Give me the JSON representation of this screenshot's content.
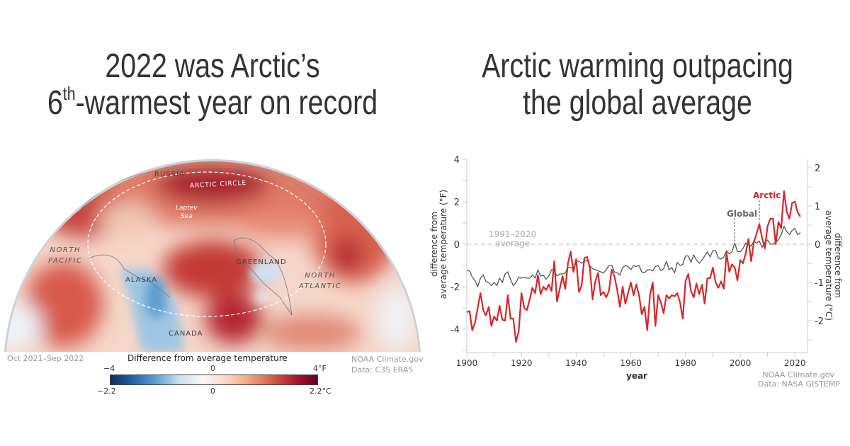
{
  "left_panel": {
    "title_line1": "2022 was Arctic’s",
    "title_line2_pre": "6",
    "title_line2_sup": "th",
    "title_line2_post": "-warmest year on record",
    "map_labels": {
      "russia": "RUSSIA",
      "arctic_circle": "ARCTIC CIRCLE",
      "laptev1": "Laptev",
      "laptev2": "Sea",
      "north_pacific1": "NORTH",
      "north_pacific2": "PACIFIC",
      "alaska": "ALASKA",
      "greenland": "GREENLAND",
      "north_atlantic1": "NORTH",
      "north_atlantic2": "ATLANTIC",
      "canada": "CANADA"
    },
    "period": "Oct 2021–Sep 2022",
    "legend_title": "Difference from average temperature",
    "legend_f": {
      "min": "−4",
      "mid": "0",
      "max": "4°F"
    },
    "legend_c": {
      "min": "−2.2",
      "mid": "0",
      "max": "2.2°C"
    },
    "legend_colors": [
      "#0b2d63",
      "#2166ac",
      "#5fa3d0",
      "#c9e1ef",
      "#f7f7f7",
      "#fcd9c4",
      "#f4a582",
      "#d6604d",
      "#b2182b",
      "#67001f"
    ],
    "credit1": "NOAA Climate.gov",
    "credit2": "Data: C3S ERA5"
  },
  "right_panel": {
    "title_line1": "Arctic warming outpacing",
    "title_line2": "the global average",
    "credit1": "NOAA Climate.gov",
    "credit2": "Data: NASA GISTEMP"
  },
  "chart_data": {
    "type": "line",
    "xlabel": "year",
    "ylabel_left": [
      "difference from",
      "average temperature (°F)"
    ],
    "ylabel_right": [
      "difference from",
      "average temperature (°C)"
    ],
    "xlim": [
      1900,
      2022
    ],
    "ylim_f": [
      -5.1,
      4
    ],
    "x_ticks": [
      "1900",
      "1920",
      "1940",
      "1960",
      "1980",
      "2000",
      "2020"
    ],
    "y_ticks_f": [
      "4",
      "2",
      "0",
      "-2",
      "-4"
    ],
    "y_ticks_c": [
      "2",
      "1",
      "0",
      "-1",
      "-2"
    ],
    "baseline_label": [
      "1991–2020",
      "average"
    ],
    "colors": {
      "arctic": "#d62728",
      "global": "#555555",
      "baseline": "#bbbbbb"
    },
    "x_start": 1900,
    "series": [
      {
        "name": "Arctic",
        "label_year": 2007,
        "values": [
          -3.2,
          -3.15,
          -4.05,
          -3.7,
          -3.0,
          -2.3,
          -3.1,
          -3.35,
          -2.95,
          -3.85,
          -3.4,
          -3.6,
          -2.9,
          -3.55,
          -3.6,
          -2.4,
          -3.5,
          -3.5,
          -4.6,
          -4.1,
          -2.3,
          -3.0,
          -3.1,
          -2.6,
          -2.05,
          -2.3,
          -1.45,
          -2.35,
          -2.0,
          -2.15,
          -1.9,
          -2.2,
          -0.8,
          -2.7,
          -2.1,
          -1.5,
          -2.1,
          -0.9,
          -0.35,
          -1.3,
          -0.7,
          -2.25,
          -1.95,
          -0.65,
          -0.6,
          -1.1,
          -2.6,
          -1.75,
          -1.35,
          -2.4,
          -2.25,
          -2.5,
          -2.2,
          -1.2,
          -1.5,
          -2.15,
          -2.95,
          -2.0,
          -2.8,
          -2.3,
          -1.8,
          -2.4,
          -1.9,
          -2.4,
          -3.3,
          -2.95,
          -4.05,
          -2.4,
          -1.8,
          -3.85,
          -2.4,
          -2.75,
          -3.25,
          -2.4,
          -2.55,
          -2.4,
          -2.45,
          -2.3,
          -2.75,
          -3.5,
          -1.75,
          -1.4,
          -2.2,
          -2.5,
          -1.85,
          -2.35,
          -1.9,
          -2.8,
          -1.6,
          -1.6,
          -1.1,
          -1.8,
          -2.05,
          -1.75,
          -2.1,
          -0.4,
          -1.3,
          -0.95,
          -1.1,
          -1.7,
          -0.75,
          -0.9,
          -0.45,
          0.25,
          -0.8,
          0.1,
          0.5,
          0.95,
          0.3,
          -0.2,
          0.85,
          1.2,
          1.2,
          0.0,
          1.05,
          0.75,
          2.5,
          1.55,
          1.2,
          1.95,
          2.0,
          1.5,
          1.3
        ]
      },
      {
        "name": "Global",
        "label_year": 1998,
        "values": [
          -1.25,
          -1.25,
          -1.55,
          -1.7,
          -2.0,
          -1.6,
          -1.45,
          -1.75,
          -1.8,
          -1.95,
          -1.8,
          -1.95,
          -1.6,
          -1.8,
          -1.4,
          -1.3,
          -1.65,
          -1.95,
          -1.8,
          -1.55,
          -1.6,
          -1.55,
          -1.6,
          -1.6,
          -1.45,
          -1.6,
          -1.2,
          -1.5,
          -1.45,
          -1.65,
          -1.5,
          -1.2,
          -1.25,
          -1.5,
          -1.4,
          -1.4,
          -1.35,
          -1.1,
          -1.1,
          -1.15,
          -0.8,
          -0.8,
          -0.9,
          -0.8,
          -0.75,
          -1.0,
          -1.15,
          -1.2,
          -1.25,
          -1.3,
          -1.35,
          -1.2,
          -1.0,
          -1.0,
          -1.3,
          -1.35,
          -1.45,
          -1.1,
          -1.0,
          -1.05,
          -1.2,
          -1.0,
          -1.05,
          -1.0,
          -1.3,
          -1.35,
          -1.2,
          -1.2,
          -1.25,
          -1.05,
          -1.0,
          -1.25,
          -1.15,
          -0.8,
          -1.2,
          -1.1,
          -1.35,
          -0.85,
          -1.0,
          -0.95,
          -0.55,
          -0.55,
          -0.85,
          -0.5,
          -0.75,
          -0.9,
          -0.75,
          -0.55,
          -0.35,
          -0.6,
          -0.3,
          -0.3,
          -0.65,
          -0.7,
          -0.6,
          -0.3,
          -0.45,
          -0.35,
          0.05,
          -0.35,
          -0.35,
          -0.2,
          0.05,
          0.0,
          -0.1,
          0.15,
          0.05,
          0.15,
          -0.15,
          0.1,
          0.2,
          0.0,
          0.0,
          0.1,
          0.2,
          0.45,
          0.85,
          0.6,
          0.45,
          0.65,
          0.75,
          0.45,
          0.55
        ]
      }
    ]
  }
}
